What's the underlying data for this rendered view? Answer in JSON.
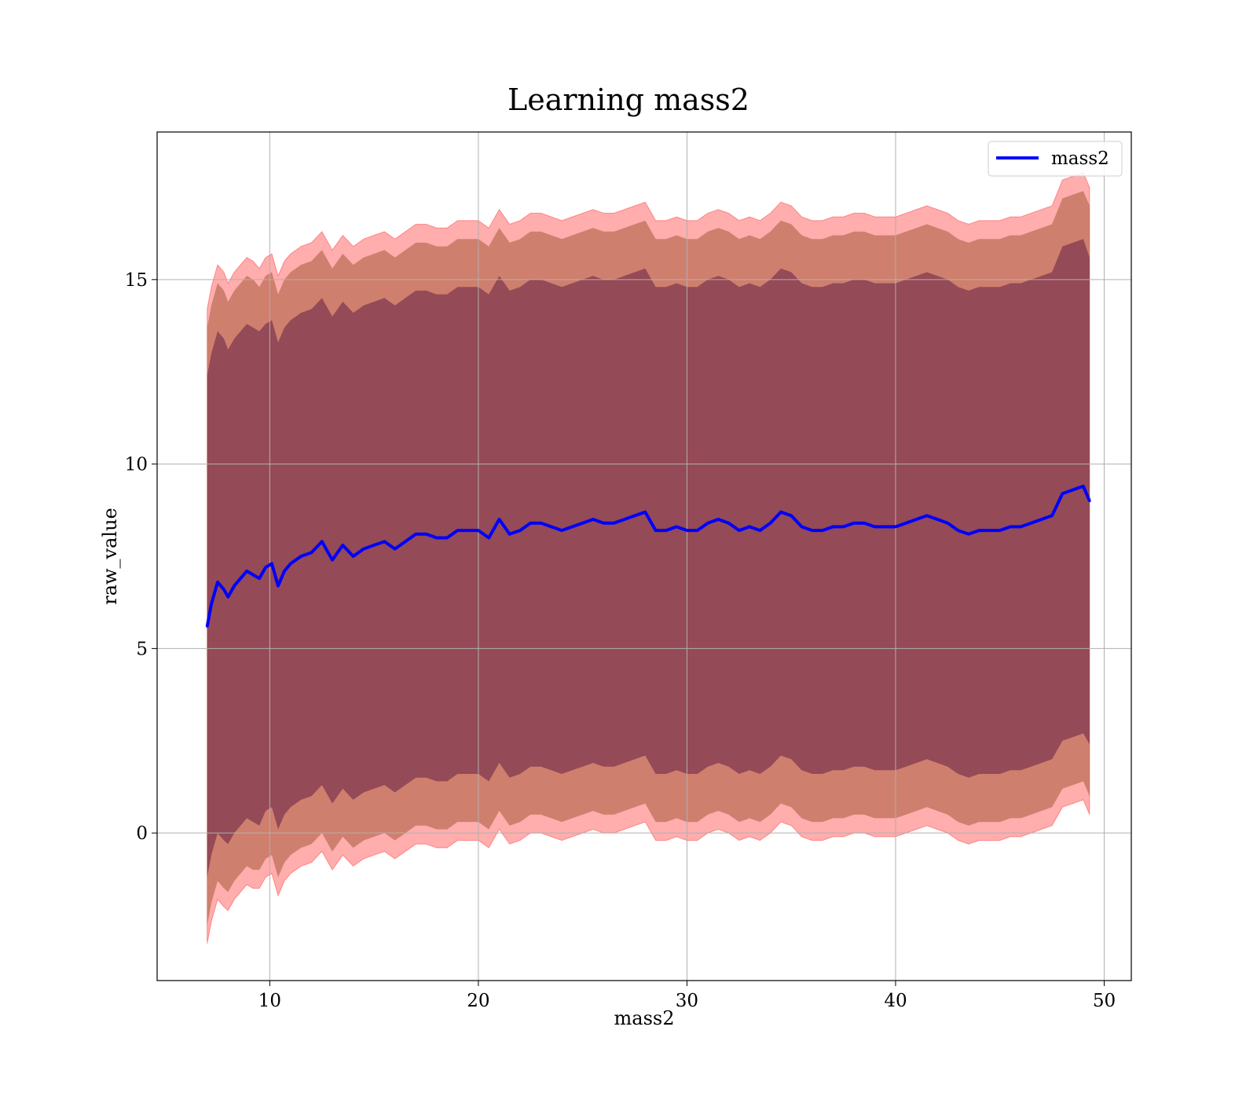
{
  "chart_data": {
    "type": "line",
    "title": "Learning mass2",
    "xlabel": "mass2",
    "ylabel": "raw_value",
    "xlim": [
      4.6,
      51.3
    ],
    "ylim": [
      -4.0,
      19.0
    ],
    "xticks": [
      10,
      20,
      30,
      40,
      50
    ],
    "yticks": [
      0,
      5,
      10,
      15
    ],
    "grid": true,
    "legend": {
      "position": "top-right",
      "entries": [
        "mass2"
      ]
    },
    "colors": {
      "line": "#0000ff",
      "outer_band": "#ff0000",
      "middle_band": "#a0522d",
      "inner_band": "#4b0a3c",
      "grid": "#b0b0b0"
    },
    "series": [
      {
        "name": "mass2",
        "x": [
          7.0,
          7.2,
          7.5,
          7.8,
          8.0,
          8.3,
          8.6,
          8.9,
          9.2,
          9.5,
          9.8,
          10.1,
          10.4,
          10.7,
          11.0,
          11.5,
          12.0,
          12.5,
          13.0,
          13.5,
          14.0,
          14.5,
          15.0,
          15.5,
          16.0,
          16.5,
          17.0,
          17.5,
          18.0,
          18.5,
          19.0,
          19.5,
          20.0,
          20.5,
          21.0,
          21.5,
          22.0,
          22.5,
          23.0,
          23.5,
          24.0,
          24.5,
          25.0,
          25.5,
          26.0,
          26.5,
          27.0,
          27.5,
          28.0,
          28.5,
          29.0,
          29.5,
          30.0,
          30.5,
          31.0,
          31.5,
          32.0,
          32.5,
          33.0,
          33.5,
          34.0,
          34.5,
          35.0,
          35.5,
          36.0,
          36.5,
          37.0,
          37.5,
          38.0,
          38.5,
          39.0,
          39.5,
          40.0,
          40.5,
          41.0,
          41.5,
          42.0,
          42.5,
          43.0,
          43.5,
          44.0,
          44.5,
          45.0,
          45.5,
          46.0,
          46.5,
          47.0,
          47.5,
          48.0,
          48.5,
          49.0,
          49.3
        ],
        "mean": [
          5.6,
          6.2,
          6.8,
          6.6,
          6.4,
          6.7,
          6.9,
          7.1,
          7.0,
          6.9,
          7.2,
          7.3,
          6.7,
          7.1,
          7.3,
          7.5,
          7.6,
          7.9,
          7.4,
          7.8,
          7.5,
          7.7,
          7.8,
          7.9,
          7.7,
          7.9,
          8.1,
          8.1,
          8.0,
          8.0,
          8.2,
          8.2,
          8.2,
          8.0,
          8.5,
          8.1,
          8.2,
          8.4,
          8.4,
          8.3,
          8.2,
          8.3,
          8.4,
          8.5,
          8.4,
          8.4,
          8.5,
          8.6,
          8.7,
          8.2,
          8.2,
          8.3,
          8.2,
          8.2,
          8.4,
          8.5,
          8.4,
          8.2,
          8.3,
          8.2,
          8.4,
          8.7,
          8.6,
          8.3,
          8.2,
          8.2,
          8.3,
          8.3,
          8.4,
          8.4,
          8.3,
          8.3,
          8.3,
          8.4,
          8.5,
          8.6,
          8.5,
          8.4,
          8.2,
          8.1,
          8.2,
          8.2,
          8.2,
          8.3,
          8.3,
          8.4,
          8.5,
          8.6,
          9.2,
          9.3,
          9.4,
          9.0
        ],
        "inner_half_width": [
          6.8,
          6.8,
          6.8,
          6.8,
          6.7,
          6.7,
          6.7,
          6.7,
          6.7,
          6.7,
          6.6,
          6.6,
          6.6,
          6.6,
          6.6,
          6.6,
          6.6,
          6.6,
          6.6,
          6.6,
          6.6,
          6.6,
          6.6,
          6.6,
          6.6,
          6.6,
          6.6,
          6.6,
          6.6,
          6.6,
          6.6,
          6.6,
          6.6,
          6.6,
          6.6,
          6.6,
          6.6,
          6.6,
          6.6,
          6.6,
          6.6,
          6.6,
          6.6,
          6.6,
          6.6,
          6.6,
          6.6,
          6.6,
          6.6,
          6.6,
          6.6,
          6.6,
          6.6,
          6.6,
          6.6,
          6.6,
          6.6,
          6.6,
          6.6,
          6.6,
          6.6,
          6.6,
          6.6,
          6.6,
          6.6,
          6.6,
          6.6,
          6.6,
          6.6,
          6.6,
          6.6,
          6.6,
          6.6,
          6.6,
          6.6,
          6.6,
          6.6,
          6.6,
          6.6,
          6.6,
          6.6,
          6.6,
          6.6,
          6.6,
          6.6,
          6.6,
          6.6,
          6.6,
          6.7,
          6.7,
          6.7,
          6.6
        ],
        "middle_half_width": [
          8.1,
          8.1,
          8.1,
          8.1,
          8.0,
          8.0,
          8.0,
          8.0,
          8.0,
          7.9,
          7.9,
          7.9,
          7.9,
          7.9,
          7.9,
          7.9,
          7.9,
          7.9,
          7.9,
          7.9,
          7.9,
          7.9,
          7.9,
          7.9,
          7.9,
          7.9,
          7.9,
          7.9,
          7.9,
          7.9,
          7.9,
          7.9,
          7.9,
          7.9,
          7.9,
          7.9,
          7.9,
          7.9,
          7.9,
          7.9,
          7.9,
          7.9,
          7.9,
          7.9,
          7.9,
          7.9,
          7.9,
          7.9,
          7.9,
          7.9,
          7.9,
          7.9,
          7.9,
          7.9,
          7.9,
          7.9,
          7.9,
          7.9,
          7.9,
          7.9,
          7.9,
          7.9,
          7.9,
          7.9,
          7.9,
          7.9,
          7.9,
          7.9,
          7.9,
          7.9,
          7.9,
          7.9,
          7.9,
          7.9,
          7.9,
          7.9,
          7.9,
          7.9,
          7.9,
          7.9,
          7.9,
          7.9,
          7.9,
          7.9,
          7.9,
          7.9,
          7.9,
          7.9,
          8.0,
          8.0,
          8.0,
          8.0
        ],
        "outer_half_width": [
          8.6,
          8.6,
          8.6,
          8.6,
          8.5,
          8.5,
          8.5,
          8.5,
          8.5,
          8.4,
          8.4,
          8.4,
          8.4,
          8.4,
          8.4,
          8.4,
          8.4,
          8.4,
          8.4,
          8.4,
          8.4,
          8.4,
          8.4,
          8.4,
          8.4,
          8.4,
          8.4,
          8.4,
          8.4,
          8.4,
          8.4,
          8.4,
          8.4,
          8.4,
          8.4,
          8.4,
          8.4,
          8.4,
          8.4,
          8.4,
          8.4,
          8.4,
          8.4,
          8.4,
          8.4,
          8.4,
          8.4,
          8.4,
          8.4,
          8.4,
          8.4,
          8.4,
          8.4,
          8.4,
          8.4,
          8.4,
          8.4,
          8.4,
          8.4,
          8.4,
          8.4,
          8.4,
          8.4,
          8.4,
          8.4,
          8.4,
          8.4,
          8.4,
          8.4,
          8.4,
          8.4,
          8.4,
          8.4,
          8.4,
          8.4,
          8.4,
          8.4,
          8.4,
          8.4,
          8.4,
          8.4,
          8.4,
          8.4,
          8.4,
          8.4,
          8.4,
          8.4,
          8.4,
          8.5,
          8.5,
          8.5,
          8.5
        ]
      }
    ]
  }
}
